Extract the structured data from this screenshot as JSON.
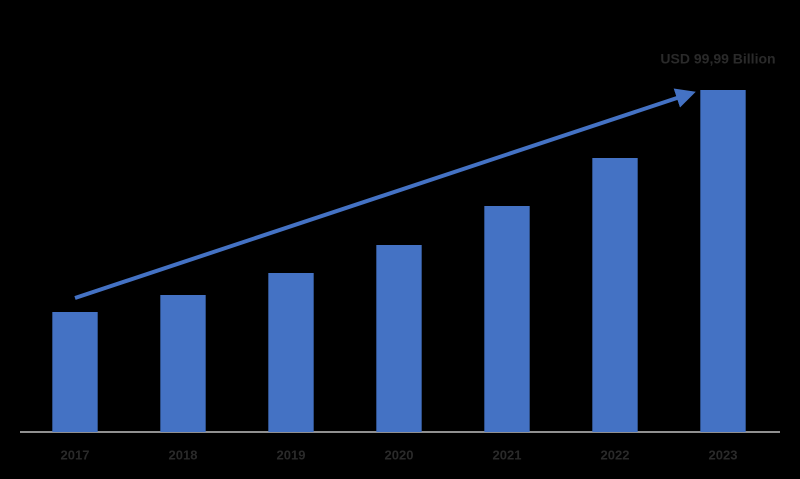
{
  "chart_data": {
    "type": "bar",
    "annotation": "USD 99,99 Billion",
    "categories": [
      "2017",
      "2018",
      "2019",
      "2020",
      "2021",
      "2022",
      "2023"
    ],
    "values": [
      120,
      137,
      159,
      187,
      226,
      274,
      342
    ],
    "color": "#4472c4",
    "ylim": [
      0,
      342
    ]
  }
}
